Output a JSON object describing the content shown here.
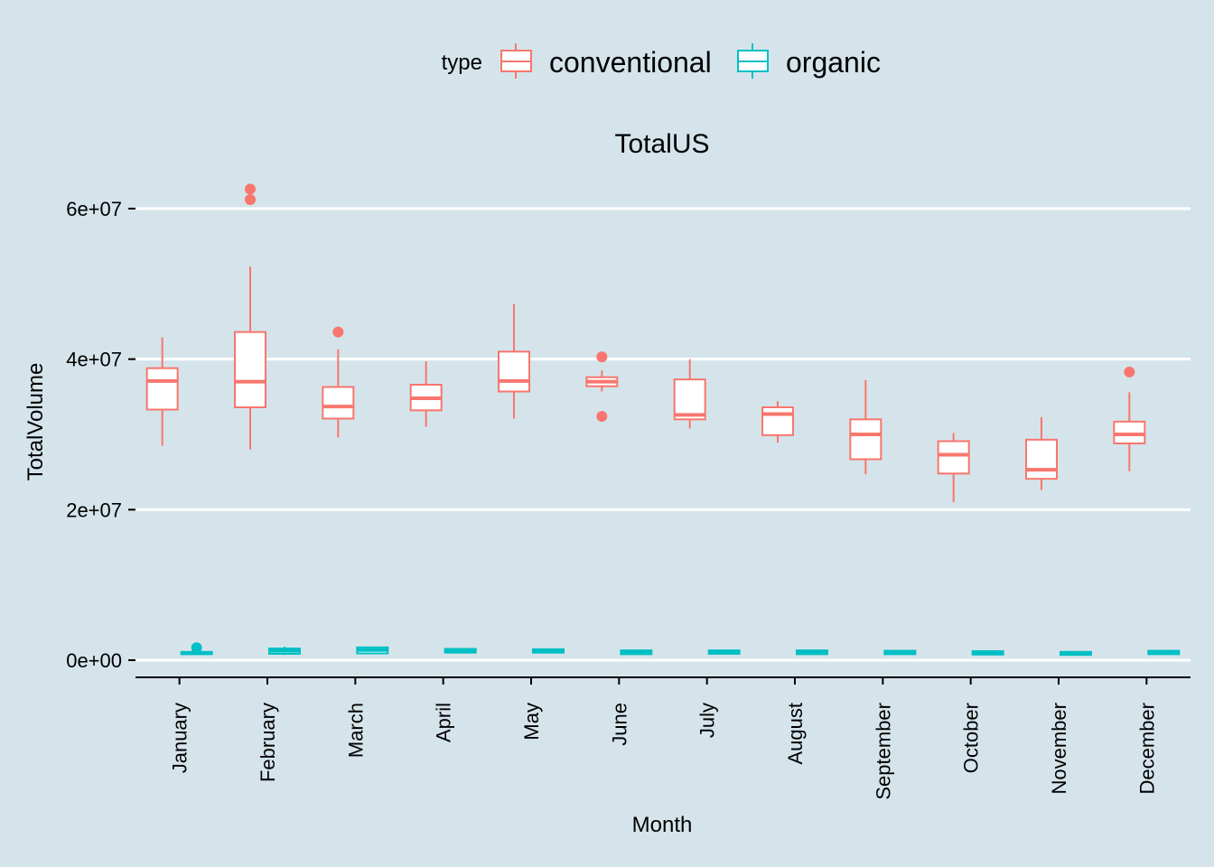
{
  "chart_data": {
    "type": "boxplot",
    "facet": "TotalUS",
    "xlabel": "Month",
    "ylabel": "TotalVolume",
    "ylim": [
      -2500000,
      66000000
    ],
    "yticks": [
      0,
      20000000,
      40000000,
      60000000
    ],
    "ytick_labels": [
      "0e+00",
      "2e+07",
      "4e+07",
      "6e+07"
    ],
    "grid": "major-y",
    "legend": {
      "title": "type",
      "position": "top",
      "entries": [
        "conventional",
        "organic"
      ]
    },
    "categories": [
      "January",
      "February",
      "March",
      "April",
      "May",
      "June",
      "July",
      "August",
      "September",
      "October",
      "November",
      "December"
    ],
    "series": [
      {
        "name": "conventional",
        "color": "#f8766d",
        "boxes": [
          {
            "min": 28500000,
            "q1": 33300000,
            "median": 37100000,
            "q3": 38800000,
            "max": 42900000,
            "outliers": []
          },
          {
            "min": 28000000,
            "q1": 33600000,
            "median": 37000000,
            "q3": 43600000,
            "max": 52300000,
            "outliers": [
              61200000,
              62600000
            ]
          },
          {
            "min": 29600000,
            "q1": 32100000,
            "median": 33700000,
            "q3": 36300000,
            "max": 41300000,
            "outliers": [
              43600000
            ]
          },
          {
            "min": 31000000,
            "q1": 33200000,
            "median": 34800000,
            "q3": 36600000,
            "max": 39700000,
            "outliers": []
          },
          {
            "min": 32100000,
            "q1": 35700000,
            "median": 37100000,
            "q3": 41000000,
            "max": 47300000,
            "outliers": []
          },
          {
            "min": 35700000,
            "q1": 36400000,
            "median": 37000000,
            "q3": 37600000,
            "max": 38500000,
            "outliers": [
              40300000,
              32400000
            ]
          },
          {
            "min": 30800000,
            "q1": 32000000,
            "median": 32600000,
            "q3": 37300000,
            "max": 40000000,
            "outliers": []
          },
          {
            "min": 28900000,
            "q1": 29900000,
            "median": 32700000,
            "q3": 33600000,
            "max": 34400000,
            "outliers": []
          },
          {
            "min": 24700000,
            "q1": 26700000,
            "median": 30000000,
            "q3": 32000000,
            "max": 37200000,
            "outliers": []
          },
          {
            "min": 21000000,
            "q1": 24800000,
            "median": 27300000,
            "q3": 29100000,
            "max": 30200000,
            "outliers": []
          },
          {
            "min": 22600000,
            "q1": 24100000,
            "median": 25300000,
            "q3": 29300000,
            "max": 32300000,
            "outliers": []
          },
          {
            "min": 25100000,
            "q1": 28800000,
            "median": 30000000,
            "q3": 31700000,
            "max": 35600000,
            "outliers": [
              38300000
            ]
          }
        ]
      },
      {
        "name": "organic",
        "color": "#00bfc4",
        "boxes": [
          {
            "min": 750000,
            "q1": 800000,
            "median": 950000,
            "q3": 1100000,
            "max": 1200000,
            "outliers": [
              1650000
            ]
          },
          {
            "min": 700000,
            "q1": 850000,
            "median": 1250000,
            "q3": 1550000,
            "max": 1800000,
            "outliers": []
          },
          {
            "min": 800000,
            "q1": 900000,
            "median": 1350000,
            "q3": 1700000,
            "max": 1750000,
            "outliers": []
          },
          {
            "min": 900000,
            "q1": 1000000,
            "median": 1250000,
            "q3": 1500000,
            "max": 1550000,
            "outliers": []
          },
          {
            "min": 900000,
            "q1": 1000000,
            "median": 1200000,
            "q3": 1450000,
            "max": 1500000,
            "outliers": []
          },
          {
            "min": 750000,
            "q1": 800000,
            "median": 1050000,
            "q3": 1300000,
            "max": 1350000,
            "outliers": []
          },
          {
            "min": 750000,
            "q1": 850000,
            "median": 1050000,
            "q3": 1300000,
            "max": 1350000,
            "outliers": []
          },
          {
            "min": 750000,
            "q1": 800000,
            "median": 1050000,
            "q3": 1300000,
            "max": 1350000,
            "outliers": []
          },
          {
            "min": 700000,
            "q1": 800000,
            "median": 1000000,
            "q3": 1250000,
            "max": 1300000,
            "outliers": []
          },
          {
            "min": 700000,
            "q1": 750000,
            "median": 1000000,
            "q3": 1200000,
            "max": 1250000,
            "outliers": []
          },
          {
            "min": 650000,
            "q1": 700000,
            "median": 900000,
            "q3": 1100000,
            "max": 1150000,
            "outliers": []
          },
          {
            "min": 750000,
            "q1": 800000,
            "median": 1000000,
            "q3": 1250000,
            "max": 1300000,
            "outliers": []
          }
        ]
      }
    ]
  }
}
